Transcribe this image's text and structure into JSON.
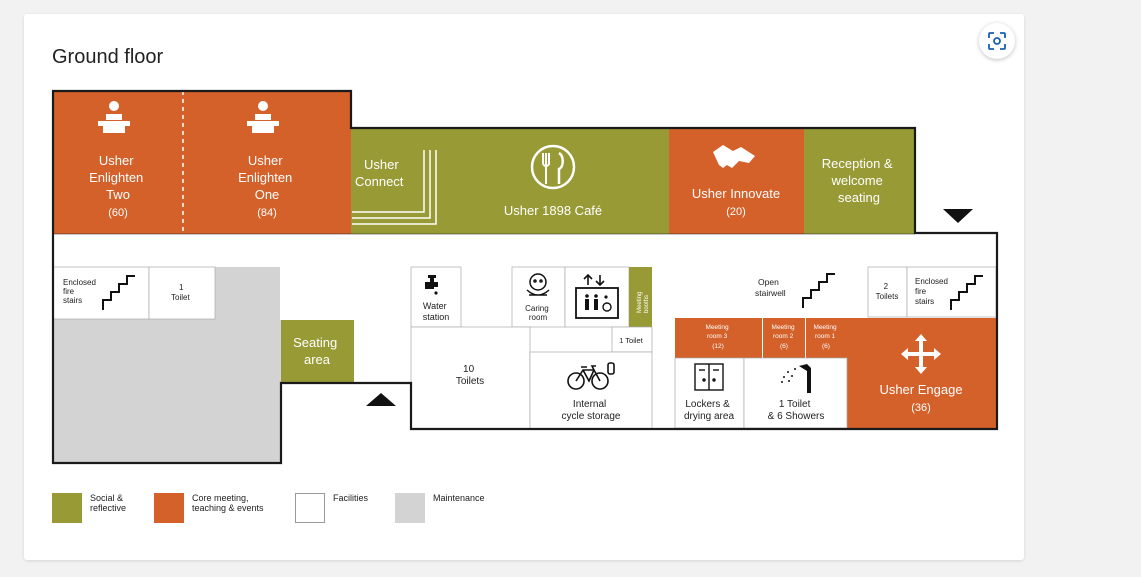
{
  "title": "Ground floor",
  "zoom_icon": "focus-zoom-icon",
  "colors": {
    "social": "#979a35",
    "core": "#d4602a",
    "facilities": "#ffffff",
    "maintenance": "#d3d3d3",
    "outline": "#1a1a1a"
  },
  "rooms": {
    "enlighten_two": {
      "line1": "Usher",
      "line2": "Enlighten",
      "line3": "Two",
      "capacity": "(60)"
    },
    "enlighten_one": {
      "line1": "Usher",
      "line2": "Enlighten",
      "line3": "One",
      "capacity": "(84)"
    },
    "connect": {
      "line1": "Usher",
      "line2": "Connect"
    },
    "cafe": {
      "name": "Usher 1898 Café"
    },
    "innovate": {
      "name": "Usher Innovate",
      "capacity": "(20)"
    },
    "reception": {
      "line1": "Reception &",
      "line2": "welcome",
      "line3": "seating"
    },
    "fire_stairs_left": {
      "line1": "Enclosed",
      "line2": "fire",
      "line3": "stairs"
    },
    "toilet_left": {
      "line1": "1",
      "line2": "Toilet"
    },
    "seating": {
      "line1": "Seating",
      "line2": "area"
    },
    "water": {
      "line1": "Water",
      "line2": "station"
    },
    "caring": {
      "line1": "Caring",
      "line2": "room"
    },
    "booths": {
      "line1": "Meeting",
      "line2": "booths"
    },
    "toilet_one": {
      "label": "1 Toilet"
    },
    "toilets_ten": {
      "line1": "10",
      "line2": "Toilets"
    },
    "cycle": {
      "line1": "Internal",
      "line2": "cycle storage"
    },
    "open_stairwell": {
      "line1": "Open",
      "line2": "stairwell"
    },
    "toilets_two": {
      "line1": "2",
      "line2": "Toilets"
    },
    "fire_stairs_right": {
      "line1": "Enclosed",
      "line2": "fire",
      "line3": "stairs"
    },
    "meeting3": {
      "line1": "Meeting",
      "line2": "room 3",
      "capacity": "(12)"
    },
    "meeting2": {
      "line1": "Meeting",
      "line2": "room 2",
      "capacity": "(6)"
    },
    "meeting1": {
      "line1": "Meeting",
      "line2": "room 1",
      "capacity": "(6)"
    },
    "lockers": {
      "line1": "Lockers &",
      "line2": "drying area"
    },
    "showers": {
      "line1": "1 Toilet",
      "line2": "& 6 Showers"
    },
    "engage": {
      "name": "Usher Engage",
      "capacity": "(36)"
    }
  },
  "legend": [
    {
      "line1": "Social &",
      "line2": "reflective",
      "color": "#979a35"
    },
    {
      "line1": "Core meeting,",
      "line2": "teaching & events",
      "color": "#d4602a"
    },
    {
      "line1": "Facilities",
      "line2": "",
      "color": "#ffffff"
    },
    {
      "line1": "Maintenance",
      "line2": "",
      "color": "#d3d3d3"
    }
  ]
}
